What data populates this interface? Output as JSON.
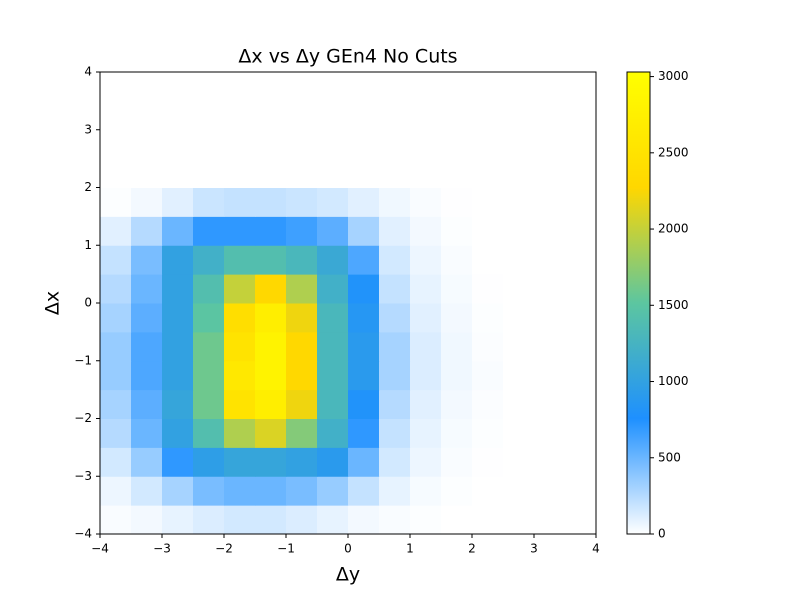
{
  "chart_data": {
    "type": "heatmap",
    "title": "Δx vs Δy GEn4 No Cuts",
    "x_label": "Δy",
    "y_label": "Δx",
    "x_bins": [
      -4,
      -3.5,
      -3,
      -2.5,
      -2,
      -1.5,
      -1,
      -0.5,
      0,
      0.5,
      1,
      1.5,
      2,
      2.5,
      3,
      3.5,
      4
    ],
    "y_bins": [
      -4,
      -3.5,
      -3,
      -2.5,
      -2,
      -1.5,
      -1,
      -0.5,
      0,
      0.5,
      1,
      1.5,
      2,
      2.5,
      3,
      3.5,
      4
    ],
    "values": [
      [
        20,
        40,
        80,
        120,
        150,
        150,
        120,
        80,
        40,
        20,
        10,
        0,
        0,
        0,
        0,
        0
      ],
      [
        60,
        150,
        300,
        450,
        500,
        500,
        450,
        350,
        200,
        80,
        30,
        10,
        0,
        0,
        0,
        0
      ],
      [
        150,
        350,
        700,
        950,
        1050,
        1050,
        1000,
        900,
        500,
        150,
        60,
        20,
        5,
        0,
        0,
        0
      ],
      [
        250,
        500,
        1000,
        1400,
        1900,
        2100,
        1700,
        1200,
        700,
        200,
        80,
        30,
        10,
        0,
        0,
        0
      ],
      [
        300,
        550,
        1050,
        1600,
        2500,
        2700,
        2200,
        1300,
        800,
        250,
        100,
        40,
        15,
        0,
        0,
        0
      ],
      [
        350,
        600,
        1000,
        1600,
        2600,
        2800,
        2300,
        1300,
        900,
        300,
        120,
        50,
        20,
        0,
        0,
        0
      ],
      [
        350,
        600,
        1000,
        1600,
        2500,
        2800,
        2300,
        1300,
        900,
        300,
        120,
        50,
        15,
        0,
        0,
        0
      ],
      [
        300,
        550,
        1000,
        1500,
        2400,
        2700,
        2200,
        1300,
        850,
        250,
        100,
        40,
        10,
        0,
        0,
        0
      ],
      [
        250,
        500,
        1000,
        1400,
        2000,
        2300,
        1900,
        1200,
        800,
        200,
        80,
        30,
        5,
        0,
        0,
        0
      ],
      [
        200,
        450,
        1000,
        1200,
        1400,
        1400,
        1300,
        1100,
        600,
        150,
        60,
        20,
        0,
        0,
        0,
        0
      ],
      [
        100,
        250,
        500,
        700,
        700,
        700,
        650,
        550,
        300,
        100,
        40,
        10,
        0,
        0,
        0,
        0
      ],
      [
        10,
        40,
        100,
        180,
        200,
        200,
        180,
        150,
        100,
        50,
        20,
        5,
        0,
        0,
        0,
        0
      ],
      [
        0,
        0,
        0,
        0,
        0,
        0,
        0,
        0,
        0,
        0,
        0,
        0,
        0,
        0,
        0,
        0
      ],
      [
        0,
        0,
        0,
        0,
        0,
        0,
        0,
        0,
        0,
        0,
        0,
        0,
        0,
        0,
        0,
        0
      ],
      [
        0,
        0,
        0,
        0,
        0,
        0,
        0,
        0,
        0,
        0,
        0,
        0,
        0,
        0,
        0,
        0
      ],
      [
        0,
        0,
        0,
        0,
        0,
        0,
        0,
        0,
        0,
        0,
        0,
        0,
        0,
        0,
        0,
        0
      ]
    ],
    "xlim": [
      -4,
      4
    ],
    "ylim": [
      -4,
      4
    ],
    "xticks": [
      {
        "value": -4,
        "label": "−4"
      },
      {
        "value": -3,
        "label": "−3"
      },
      {
        "value": -2,
        "label": "−2"
      },
      {
        "value": -1,
        "label": "−1"
      },
      0,
      1,
      2,
      3,
      4
    ],
    "yticks": [
      {
        "value": -4,
        "label": "−4"
      },
      {
        "value": -3,
        "label": "−3"
      },
      {
        "value": -2,
        "label": "−2"
      },
      {
        "value": -1,
        "label": "−1"
      },
      0,
      1,
      2,
      3,
      4
    ],
    "clim": [
      0,
      3030
    ],
    "cticks": [
      0,
      500,
      1000,
      1500,
      2000,
      2500,
      3000
    ],
    "colorscale": [
      "#ffffff",
      "#1e90ff",
      "#5cc6a0",
      "#ffd700",
      "#ffff00"
    ]
  }
}
